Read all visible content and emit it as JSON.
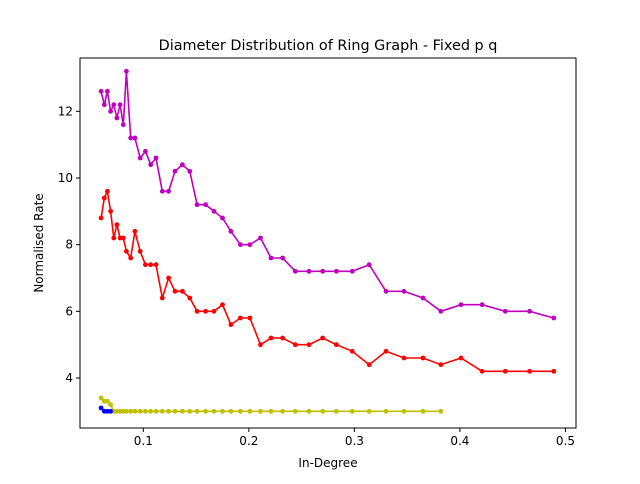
{
  "chart_data": {
    "type": "line",
    "title": "Diameter Distribution of Ring Graph - Fixed p q",
    "xlabel": "In-Degree",
    "ylabel": "Normalised Rate",
    "xlim": [
      0.04,
      0.51
    ],
    "ylim": [
      2.5,
      13.6
    ],
    "xticks": [
      0.1,
      0.2,
      0.3,
      0.4,
      0.5
    ],
    "xtick_labels": [
      "0.1",
      "0.2",
      "0.3",
      "0.4",
      "0.5"
    ],
    "yticks": [
      4,
      6,
      8,
      10,
      12
    ],
    "ytick_labels": [
      "4",
      "6",
      "8",
      "10",
      "12"
    ],
    "grid": false,
    "series": [
      {
        "color": "#bf00bf",
        "x": [
          0.06,
          0.063,
          0.066,
          0.069,
          0.072,
          0.075,
          0.078,
          0.081,
          0.084,
          0.088,
          0.092,
          0.097,
          0.102,
          0.107,
          0.112,
          0.118,
          0.124,
          0.13,
          0.137,
          0.144,
          0.151,
          0.159,
          0.167,
          0.175,
          0.183,
          0.192,
          0.201,
          0.211,
          0.221,
          0.232,
          0.244,
          0.257,
          0.27,
          0.283,
          0.298,
          0.314,
          0.33,
          0.347,
          0.365,
          0.382,
          0.401,
          0.421,
          0.443,
          0.466,
          0.489
        ],
        "y": [
          12.6,
          12.2,
          12.6,
          12.0,
          12.2,
          11.8,
          12.2,
          11.6,
          13.2,
          11.2,
          11.2,
          10.6,
          10.8,
          10.4,
          10.6,
          9.6,
          9.6,
          10.2,
          10.4,
          10.2,
          9.2,
          9.2,
          9.0,
          8.8,
          8.4,
          8.0,
          8.0,
          8.2,
          7.6,
          7.6,
          7.2,
          7.2,
          7.2,
          7.2,
          7.2,
          7.4,
          6.6,
          6.6,
          6.4,
          6.0,
          6.2,
          6.2,
          6.0,
          6.0,
          5.8
        ]
      },
      {
        "color": "#ff0000",
        "x": [
          0.06,
          0.063,
          0.066,
          0.069,
          0.072,
          0.075,
          0.078,
          0.081,
          0.084,
          0.088,
          0.092,
          0.097,
          0.102,
          0.107,
          0.112,
          0.118,
          0.124,
          0.13,
          0.137,
          0.144,
          0.151,
          0.159,
          0.167,
          0.175,
          0.183,
          0.192,
          0.201,
          0.211,
          0.221,
          0.232,
          0.244,
          0.257,
          0.27,
          0.283,
          0.298,
          0.314,
          0.33,
          0.347,
          0.365,
          0.382,
          0.401,
          0.421,
          0.443,
          0.466,
          0.489
        ],
        "y": [
          8.8,
          9.4,
          9.6,
          9.0,
          8.2,
          8.6,
          8.2,
          8.2,
          7.8,
          7.6,
          8.4,
          7.8,
          7.4,
          7.4,
          7.4,
          6.4,
          7.0,
          6.6,
          6.6,
          6.4,
          6.0,
          6.0,
          6.0,
          6.2,
          5.6,
          5.8,
          5.8,
          5.0,
          5.2,
          5.2,
          5.0,
          5.0,
          5.2,
          5.0,
          4.8,
          4.4,
          4.8,
          4.6,
          4.6,
          4.4,
          4.6,
          4.2,
          4.2,
          4.2,
          4.2
        ]
      },
      {
        "color": "#bfbf00",
        "x": [
          0.06,
          0.063,
          0.066,
          0.069,
          0.072,
          0.075,
          0.078,
          0.081,
          0.084,
          0.088,
          0.092,
          0.097,
          0.102,
          0.107,
          0.112,
          0.118,
          0.124,
          0.13,
          0.137,
          0.144,
          0.151,
          0.159,
          0.167,
          0.175,
          0.183,
          0.192,
          0.201,
          0.211,
          0.221,
          0.232,
          0.244,
          0.257,
          0.27,
          0.283,
          0.298,
          0.314,
          0.33,
          0.347,
          0.365,
          0.382
        ],
        "y": [
          3.4,
          3.3,
          3.3,
          3.2,
          3.0,
          3.0,
          3.0,
          3.0,
          3.0,
          3.0,
          3.0,
          3.0,
          3.0,
          3.0,
          3.0,
          3.0,
          3.0,
          3.0,
          3.0,
          3.0,
          3.0,
          3.0,
          3.0,
          3.0,
          3.0,
          3.0,
          3.0,
          3.0,
          3.0,
          3.0,
          3.0,
          3.0,
          3.0,
          3.0,
          3.0,
          3.0,
          3.0,
          3.0,
          3.0,
          3.0
        ]
      },
      {
        "color": "#0000ff",
        "x": [
          0.06,
          0.063,
          0.066,
          0.069
        ],
        "y": [
          3.1,
          3.0,
          3.0,
          3.0
        ]
      }
    ]
  }
}
